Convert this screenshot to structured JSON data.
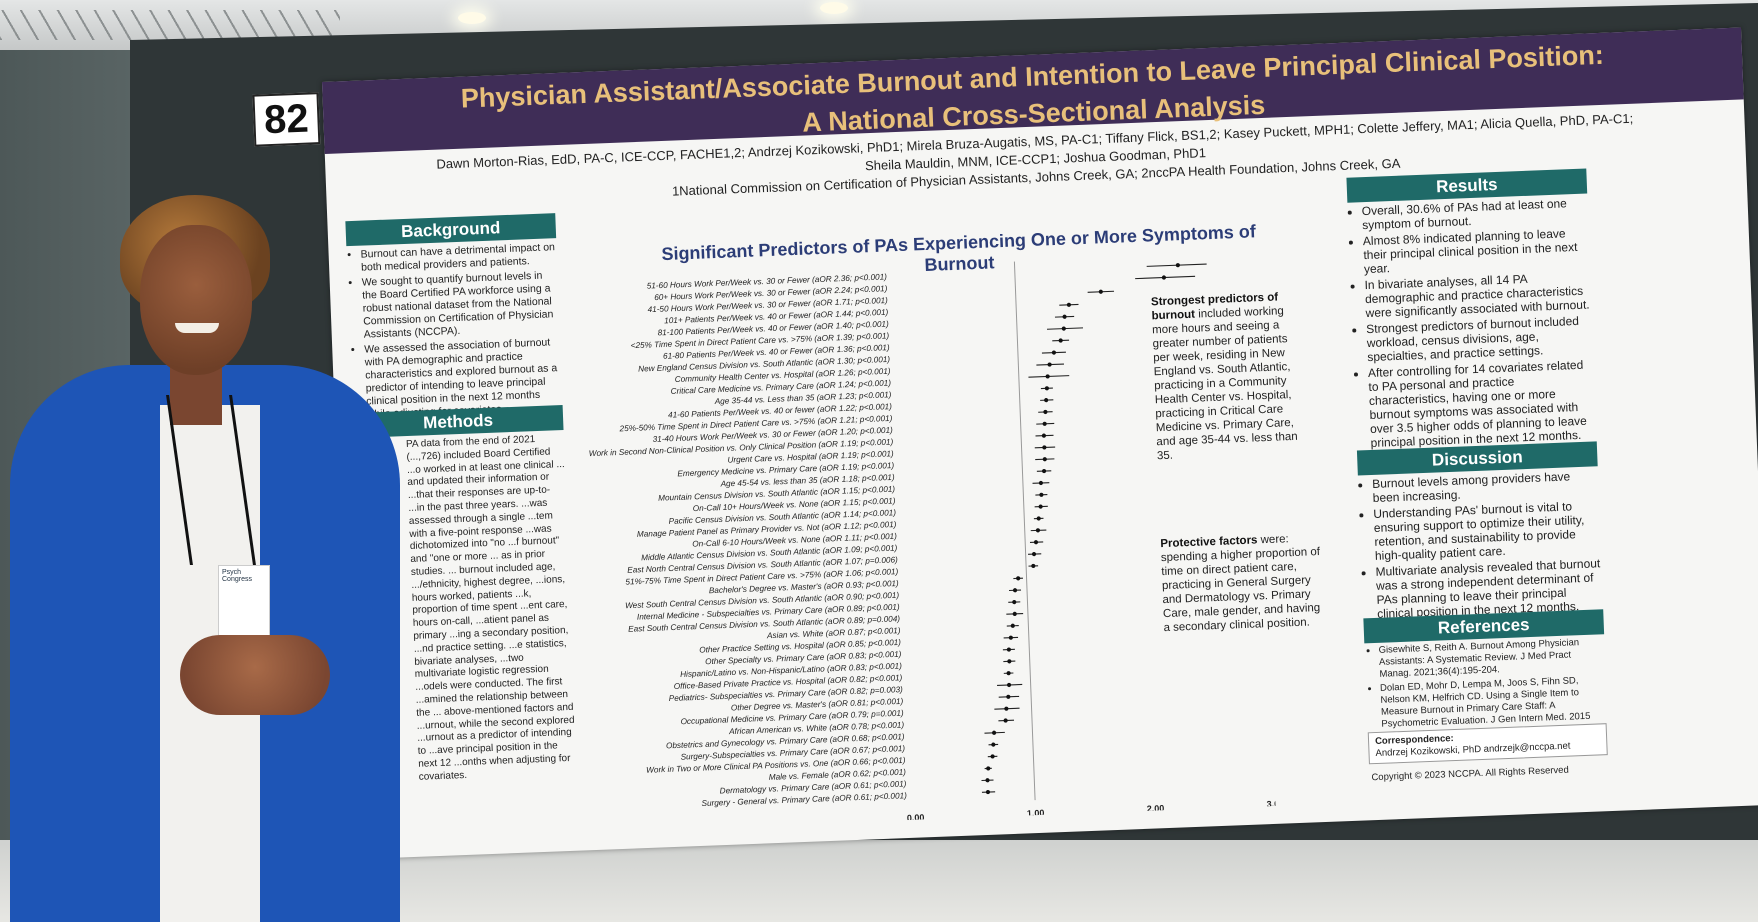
{
  "poster": {
    "number": "82",
    "title_line1": "Physician Assistant/Associate Burnout and Intention to Leave Principal Clinical Position:",
    "title_line2": "A National Cross-Sectional Analysis",
    "authors_line1": "Dawn Morton-Rias, EdD, PA-C, ICE-CCP, FACHE1,2; Andrzej Kozikowski, PhD1; Mirela Bruza-Augatis, MS, PA-C1; Tiffany Flick, BS1,2; Kasey Puckett, MPH1; Colette Jeffery, MA1; Alicia Quella, PhD, PA-C1;",
    "authors_line2": "Sheila Mauldin, MNM, ICE-CCP1; Joshua Goodman, PhD1",
    "affiliations": "1National Commission on Certification of Physician Assistants, Johns Creek, GA; 2nccPA Health Foundation, Johns Creek, GA"
  },
  "background": {
    "heading": "Background",
    "items": [
      "Burnout can have a detrimental impact on both medical providers and patients.",
      "We sought to quantify burnout levels in the Board Certified PA workforce using a robust national dataset from the National Commission on Certification of Physician Assistants (NCCPA).",
      "We assessed the association of burnout with PA demographic and practice characteristics and explored burnout as a predictor of intending to leave principal clinical position in the next 12 months while adjusting for covariates."
    ]
  },
  "methods": {
    "heading": "Methods",
    "text": "PA data from the end of 2021 (...,726) included Board Certified ...o worked in at least one clinical ... and updated their information or ...that their responses are up-to- ...in the past three years. ...was assessed through a single ...tem with a five-point response ...was dichotomized into \"no ...f burnout\" and \"one or more ... as in prior studies. ... burnout included age, .../ethnicity, highest degree, ...ions, hours worked, patients ...k, proportion of time spent ...ent care, hours on-call, ...atient panel as primary ...ing a secondary position, ...nd practice setting. ...e statistics, bivariate analyses, ...two multivariate logistic regression ...odels were conducted. The first ...amined the relationship between the ... above-mentioned factors and ...urnout, while the second explored ...urnout as a predictor of intending to ...ave principal position in the next 12 ...onths when adjusting for covariates."
  },
  "results": {
    "heading": "Results",
    "items": [
      "Overall, 30.6% of PAs had at least one symptom of burnout.",
      "Almost 8% indicated planning to leave their principal clinical position in the next year.",
      "In bivariate analyses, all 14 PA demographic and practice characteristics were significantly associated with burnout.",
      "Strongest predictors of burnout included workload, census divisions, age, specialties, and practice settings.",
      "After controlling for 14 covariates related to PA personal and practice characteristics, having one or more burnout symptoms was associated with over 3.5 higher odds of planning to leave principal position in the next 12 months."
    ]
  },
  "discussion": {
    "heading": "Discussion",
    "items": [
      "Burnout levels among providers have been increasing.",
      "Understanding PAs' burnout is vital to ensuring support to optimize their utility, retention, and sustainability to provide high-quality patient care.",
      "Multivariate analysis revealed that burnout was a strong independent determinant of PAs planning to leave their principal clinical position in the next 12 months."
    ]
  },
  "references": {
    "heading": "References",
    "items": [
      "Gisewhite S, Reith A. Burnout Among Physician Assistants: A Systematic Review. J Med Pract Manag. 2021;36(4):195-204.",
      "Dolan ED, Mohr D, Lempa M, Joos S, Fihn SD, Nelson KM, Helfrich CD. Using a Single Item to Measure Burnout in Primary Care Staff: A Psychometric Evaluation. J Gen Intern Med. 2015 May 1;30(5):582-7."
    ]
  },
  "correspondence": {
    "label": "Correspondence:",
    "text": "Andrzej Kozikowski, PhD andrzejk@nccpa.net"
  },
  "copyright": "Copyright © 2023 NCCPA. All Rights Reserved",
  "notes": {
    "strongest_bold": "Strongest predictors of burnout",
    "strongest_text": " included working more hours and seeing a greater number of patients per week, residing in New England vs. South Atlantic, practicing in a Community Health Center vs. Hospital, practicing in Critical Care Medicine vs. Primary Care, and age 35-44 vs. less than 35.",
    "protective_bold": "Protective factors",
    "protective_text": " were: spending a higher proportion of time on direct patient care, practicing in General Surgery and Dermatology vs. Primary Care, male gender, and having a secondary clinical position."
  },
  "badge_text": "Psych Congress",
  "chart_data": {
    "type": "scatter",
    "title": "Significant Predictors of PAs Experiencing One or More Symptoms of Burnout",
    "x_ticks": [
      "0.00",
      "1.00",
      "2.00",
      "3.00"
    ],
    "xlim": [
      0,
      3
    ],
    "reference_line": 1,
    "grid": false,
    "rows": [
      {
        "label": "51-60 Hours Work Per/Week vs. 30 or Fewer (aOR 2.36; p<0.001)",
        "or": 2.36,
        "lo": 2.1,
        "hi": 2.6
      },
      {
        "label": "60+ Hours Work Per/Week vs. 30 or Fewer (aOR 2.24; p<0.001)",
        "or": 2.24,
        "lo": 2.0,
        "hi": 2.5
      },
      {
        "label": "41-50 Hours Work Per/Week vs. 30 or Fewer (aOR 1.71; p<0.001)",
        "or": 1.71,
        "lo": 1.6,
        "hi": 1.82
      },
      {
        "label": "101+ Patients Per/Week vs. 40 or Fewer (aOR 1.44; p<0.001)",
        "or": 1.44,
        "lo": 1.36,
        "hi": 1.52
      },
      {
        "label": "81-100 Patients Per/Week vs. 40 or Fewer (aOR 1.40; p<0.001)",
        "or": 1.4,
        "lo": 1.32,
        "hi": 1.48
      },
      {
        "label": "<25% Time Spent in Direct Patient Care vs. >75% (aOR 1.39; p<0.001)",
        "or": 1.39,
        "lo": 1.25,
        "hi": 1.55
      },
      {
        "label": "61-80 Patients Per/Week vs. 40 or Fewer (aOR 1.36; p<0.001)",
        "or": 1.36,
        "lo": 1.29,
        "hi": 1.43
      },
      {
        "label": "New England Census Division vs. South Atlantic (aOR 1.30; p<0.001)",
        "or": 1.3,
        "lo": 1.2,
        "hi": 1.4
      },
      {
        "label": "Community Health Center vs. Hospital (aOR 1.26; p<0.001)",
        "or": 1.26,
        "lo": 1.15,
        "hi": 1.38
      },
      {
        "label": "Critical Care Medicine vs. Primary Care (aOR 1.24; p<0.001)",
        "or": 1.24,
        "lo": 1.08,
        "hi": 1.42
      },
      {
        "label": "Age 35-44 vs. Less than 35 (aOR 1.23; p<0.001)",
        "or": 1.23,
        "lo": 1.18,
        "hi": 1.28
      },
      {
        "label": "41-60 Patients Per/Week vs. 40 or fewer (aOR 1.22; p<0.001)",
        "or": 1.22,
        "lo": 1.17,
        "hi": 1.28
      },
      {
        "label": "25%-50% Time Spent in Direct Patient Care vs. >75% (aOR 1.21; p<0.001)",
        "or": 1.21,
        "lo": 1.15,
        "hi": 1.27
      },
      {
        "label": "31-40 Hours Work Per/Week vs. 30 or Fewer (aOR 1.20; p<0.001)",
        "or": 1.2,
        "lo": 1.13,
        "hi": 1.28
      },
      {
        "label": "Work in Second Non-Clinical Position vs. Only Clinical Position (aOR 1.19; p<0.001)",
        "or": 1.19,
        "lo": 1.12,
        "hi": 1.27
      },
      {
        "label": "Urgent Care vs. Hospital (aOR 1.19; p<0.001)",
        "or": 1.19,
        "lo": 1.11,
        "hi": 1.28
      },
      {
        "label": "Emergency Medicine vs. Primary Care (aOR 1.19; p<0.001)",
        "or": 1.19,
        "lo": 1.11,
        "hi": 1.27
      },
      {
        "label": "Age 45-54 vs. less than 35 (aOR 1.18; p<0.001)",
        "or": 1.18,
        "lo": 1.12,
        "hi": 1.24
      },
      {
        "label": "Mountain Census Division vs. South Atlantic (aOR 1.15; p<0.001)",
        "or": 1.15,
        "lo": 1.08,
        "hi": 1.22
      },
      {
        "label": "On-Call 10+ Hours/Week vs. None (aOR 1.15; p<0.001)",
        "or": 1.15,
        "lo": 1.1,
        "hi": 1.2
      },
      {
        "label": "Pacific Census Division vs. South Atlantic (aOR 1.14; p<0.001)",
        "or": 1.14,
        "lo": 1.09,
        "hi": 1.2
      },
      {
        "label": "Manage Patient Panel as Primary Provider vs. Not (aOR 1.12; p<0.001)",
        "or": 1.12,
        "lo": 1.08,
        "hi": 1.16
      },
      {
        "label": "On-Call 6-10 Hours/Week vs. None (aOR 1.11; p<0.001)",
        "or": 1.11,
        "lo": 1.05,
        "hi": 1.18
      },
      {
        "label": "Middle Atlantic Census Division vs. South Atlantic (aOR 1.09; p<0.001)",
        "or": 1.09,
        "lo": 1.04,
        "hi": 1.15
      },
      {
        "label": "East North Central Census Division vs. South Atlantic (aOR 1.07; p=0.006)",
        "or": 1.07,
        "lo": 1.02,
        "hi": 1.13
      },
      {
        "label": "51%-75% Time Spent in Direct Patient Care vs. >75% (aOR 1.06; p<0.001)",
        "or": 1.06,
        "lo": 1.02,
        "hi": 1.1
      },
      {
        "label": "Bachelor's Degree vs. Master's (aOR 0.93; p<0.001)",
        "or": 0.93,
        "lo": 0.89,
        "hi": 0.97
      },
      {
        "label": "West South Central Census Division vs. South Atlantic (aOR 0.90; p<0.001)",
        "or": 0.9,
        "lo": 0.85,
        "hi": 0.95
      },
      {
        "label": "Internal Medicine - Subspecialties vs. Primary Care (aOR 0.89; p<0.001)",
        "or": 0.89,
        "lo": 0.84,
        "hi": 0.94
      },
      {
        "label": "East South Central Census Division vs. South Atlantic (aOR 0.89; p=0.004)",
        "or": 0.89,
        "lo": 0.82,
        "hi": 0.96
      },
      {
        "label": "Asian vs. White (aOR 0.87; p<0.001)",
        "or": 0.87,
        "lo": 0.82,
        "hi": 0.92
      },
      {
        "label": "Other Practice Setting vs. Hospital (aOR 0.85; p<0.001)",
        "or": 0.85,
        "lo": 0.79,
        "hi": 0.91
      },
      {
        "label": "Other Specialty vs. Primary Care (aOR 0.83; p<0.001)",
        "or": 0.83,
        "lo": 0.78,
        "hi": 0.88
      },
      {
        "label": "Hispanic/Latino vs. Non-Hispanic/Latino (aOR 0.83; p<0.001)",
        "or": 0.83,
        "lo": 0.78,
        "hi": 0.88
      },
      {
        "label": "Office-Based Private Practice vs. Hospital (aOR 0.82; p<0.001)",
        "or": 0.82,
        "lo": 0.78,
        "hi": 0.86
      },
      {
        "label": "Pediatrics- Subspecialties vs. Primary Care (aOR 0.82; p=0.003)",
        "or": 0.82,
        "lo": 0.72,
        "hi": 0.93
      },
      {
        "label": "Other Degree vs. Master's (aOR 0.81; p<0.001)",
        "or": 0.81,
        "lo": 0.73,
        "hi": 0.9
      },
      {
        "label": "Occupational Medicine vs. Primary Care (aOR 0.79; p=0.001)",
        "or": 0.79,
        "lo": 0.69,
        "hi": 0.9
      },
      {
        "label": "African American vs. White (aOR 0.78; p<0.001)",
        "or": 0.78,
        "lo": 0.72,
        "hi": 0.85
      },
      {
        "label": "Obstetrics and Gynecology vs. Primary Care (aOR 0.68; p<0.001)",
        "or": 0.68,
        "lo": 0.6,
        "hi": 0.77
      },
      {
        "label": "Surgery-Subspecialties vs. Primary Care (aOR 0.67; p<0.001)",
        "or": 0.67,
        "lo": 0.63,
        "hi": 0.71
      },
      {
        "label": "Work in Two or More Clinical PA Positions vs. One (aOR 0.66; p<0.001)",
        "or": 0.66,
        "lo": 0.62,
        "hi": 0.7
      },
      {
        "label": "Male vs. Female (aOR 0.62; p<0.001)",
        "or": 0.62,
        "lo": 0.59,
        "hi": 0.65
      },
      {
        "label": "Dermatology vs. Primary Care (aOR 0.61; p<0.001)",
        "or": 0.61,
        "lo": 0.56,
        "hi": 0.66
      },
      {
        "label": "Surgery - General vs. Primary Care (aOR 0.61; p<0.001)",
        "or": 0.61,
        "lo": 0.56,
        "hi": 0.67
      }
    ]
  }
}
